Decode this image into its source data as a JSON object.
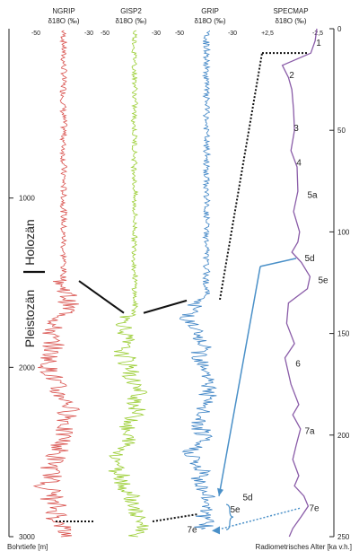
{
  "chart_data": {
    "type": "line",
    "left_axis": {
      "label": "Bohrtiefe [m]",
      "ticks": [
        {
          "value": 1000,
          "label": "1000"
        },
        {
          "value": 2000,
          "label": "2000"
        },
        {
          "value": 3000,
          "label": "3000"
        }
      ],
      "range": [
        0,
        3000
      ]
    },
    "right_axis": {
      "label": "Radiometrisches Alter [ka v.h.]",
      "ticks": [
        {
          "value": 0,
          "label": "0"
        },
        {
          "value": 50,
          "label": "50"
        },
        {
          "value": 100,
          "label": "100"
        },
        {
          "value": 150,
          "label": "150"
        },
        {
          "value": 200,
          "label": "200"
        },
        {
          "value": 250,
          "label": "250"
        }
      ],
      "range": [
        0,
        250
      ]
    },
    "epochs": [
      {
        "label": "Holozän"
      },
      {
        "label": "Pleistozän"
      }
    ],
    "cores": [
      {
        "name": "NGRIP",
        "unit": "δ18O (‰)",
        "scale_left": "-50",
        "scale_right": "-30",
        "color": "#d9534f",
        "holocene_end_depth": 1490,
        "bottom_depth": 3000
      },
      {
        "name": "GISP2",
        "unit": "δ18O (‰)",
        "scale_left": "-50",
        "scale_right": "-30",
        "color": "#9acd32",
        "holocene_end_depth": 1700,
        "bottom_depth": 3000
      },
      {
        "name": "GRIP",
        "unit": "δ18O (‰)",
        "scale_left": "-50",
        "scale_right": "-30",
        "color": "#3b82c4",
        "holocene_end_depth": 1600,
        "bottom_depth": 2960
      }
    ],
    "specmap": {
      "name": "SPECMAP",
      "unit": "δ18O (‰)",
      "scale_left": "+2,5",
      "scale_right": "-2,5",
      "color": "#8a5ca8",
      "points": [
        [
          0,
          -2.4
        ],
        [
          6,
          -2.2
        ],
        [
          12,
          -1.7
        ],
        [
          18,
          1.6
        ],
        [
          24,
          0.9
        ],
        [
          30,
          0.5
        ],
        [
          40,
          0.3
        ],
        [
          50,
          0.2
        ],
        [
          60,
          0.6
        ],
        [
          68,
          -0.1
        ],
        [
          80,
          -0.2
        ],
        [
          90,
          0.3
        ],
        [
          100,
          -0.4
        ],
        [
          105,
          -0.2
        ],
        [
          110,
          0.5
        ],
        [
          115,
          -0.6
        ],
        [
          122,
          -1.6
        ],
        [
          128,
          -1.3
        ],
        [
          135,
          0.9
        ],
        [
          145,
          1.1
        ],
        [
          155,
          0.2
        ],
        [
          162,
          1.3
        ],
        [
          175,
          0.6
        ],
        [
          185,
          -0.3
        ],
        [
          190,
          0.4
        ],
        [
          197,
          -0.5
        ],
        [
          205,
          0.0
        ],
        [
          212,
          0.4
        ],
        [
          220,
          -0.3
        ],
        [
          225,
          0.2
        ],
        [
          230,
          -0.9
        ],
        [
          235,
          -1.4
        ],
        [
          240,
          -0.6
        ],
        [
          246,
          0.4
        ],
        [
          250,
          0.8
        ]
      ],
      "stages": [
        {
          "label": "1",
          "age": 7
        },
        {
          "label": "2",
          "age": 23
        },
        {
          "label": "3",
          "age": 49
        },
        {
          "label": "4",
          "age": 66
        },
        {
          "label": "5a",
          "age": 82
        },
        {
          "label": "5d",
          "age": 113
        },
        {
          "label": "5e",
          "age": 124
        },
        {
          "label": "6",
          "age": 165
        },
        {
          "label": "7a",
          "age": 198
        },
        {
          "label": "7e",
          "age": 236
        }
      ]
    },
    "grip_annotations": [
      {
        "label": "5d",
        "depth": 2770
      },
      {
        "label": "5e",
        "depth": 2840
      },
      {
        "label": "7e",
        "depth": 2960
      }
    ]
  }
}
